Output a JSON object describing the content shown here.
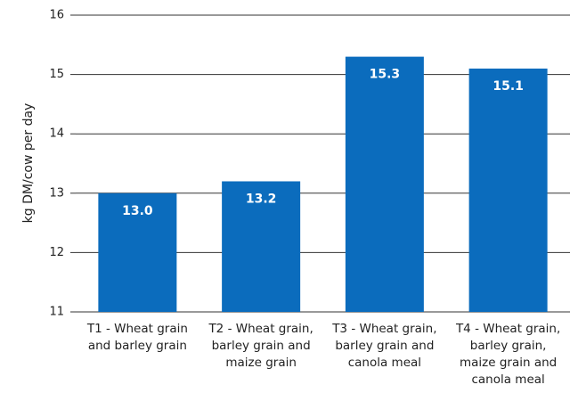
{
  "chart_data": {
    "type": "bar",
    "ylabel": "kg DM/cow per day",
    "categories": [
      "T1 - Wheat grain and barley grain",
      "T2 - Wheat grain, barley grain and maize grain",
      "T3 - Wheat grain, barley grain and canola meal",
      "T4 - Wheat grain, barley grain, maize grain and canola meal"
    ],
    "values": [
      13.0,
      13.2,
      15.3,
      15.1
    ],
    "value_labels": [
      "13.0",
      "13.2",
      "15.3",
      "15.1"
    ],
    "color": "#0b6cbd",
    "ylim": [
      11,
      16
    ],
    "yticks": [
      11,
      12,
      13,
      14,
      15,
      16
    ],
    "grid": true
  }
}
